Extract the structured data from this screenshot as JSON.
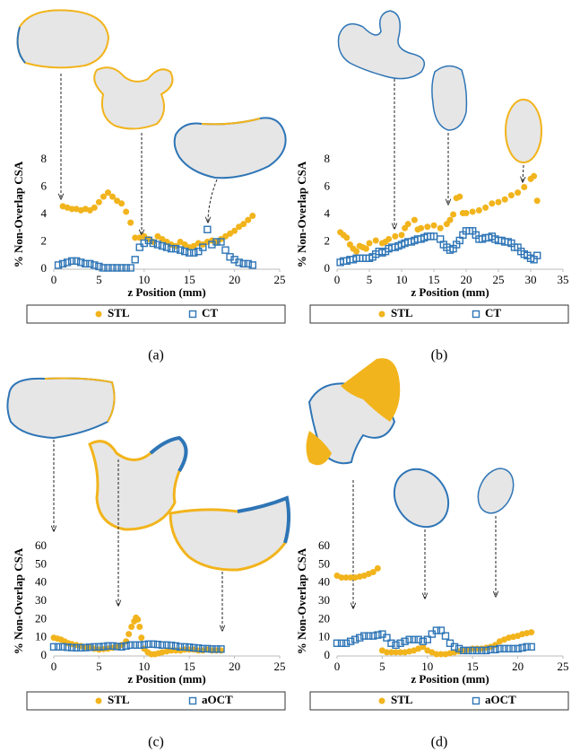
{
  "chart_data": [
    {
      "type": "scatter",
      "panel_label": "(a)",
      "xlabel": "z Position (mm)",
      "ylabel": "% Non-Overlap CSA",
      "xlim": [
        0,
        25
      ],
      "ylim": [
        0,
        8
      ],
      "xticks": [
        0,
        5,
        10,
        15,
        20,
        25
      ],
      "yticks": [
        0,
        2,
        4,
        6,
        8
      ],
      "series": [
        {
          "name": "STL",
          "color": "#f2b41c",
          "marker": "circle",
          "x": [
            1,
            1.5,
            2,
            2.5,
            3,
            3.5,
            4,
            4.5,
            5,
            5.5,
            6,
            6.5,
            7,
            7.5,
            8,
            8.5,
            9,
            9.5,
            10,
            10.5,
            11,
            11.5,
            12,
            12.5,
            13,
            13.5,
            14,
            14.5,
            15,
            15.5,
            16,
            16.5,
            17,
            17.5,
            18,
            18.5,
            19,
            19.5,
            20,
            20.5,
            21,
            21.5,
            22
          ],
          "values": [
            4.6,
            4.5,
            4.4,
            4.4,
            4.3,
            4.4,
            4.3,
            4.5,
            4.9,
            5.3,
            5.6,
            5.3,
            5.0,
            4.8,
            4.2,
            3.4,
            2.3,
            2.3,
            2.4,
            2.2,
            2.0,
            2.4,
            2.2,
            2.0,
            1.8,
            1.7,
            2.0,
            1.8,
            1.6,
            1.7,
            1.9,
            1.8,
            2.0,
            2.1,
            2.0,
            2.2,
            2.4,
            2.6,
            2.8,
            3.1,
            3.3,
            3.6,
            3.9
          ]
        },
        {
          "name": "CT",
          "color": "#2e75b6",
          "marker": "square",
          "x": [
            0.5,
            1,
            1.5,
            2,
            2.5,
            3,
            3.5,
            4,
            4.5,
            5,
            5.5,
            6,
            6.5,
            7,
            7.5,
            8,
            8.5,
            9,
            9.5,
            10,
            10.5,
            11,
            11.5,
            12,
            12.5,
            13,
            13.5,
            14,
            14.5,
            15,
            15.5,
            16,
            16.5,
            17,
            17.5,
            18,
            18.5,
            19,
            19.5,
            20,
            20.5,
            21,
            21.5,
            22
          ],
          "values": [
            0.3,
            0.4,
            0.5,
            0.6,
            0.6,
            0.5,
            0.4,
            0.4,
            0.3,
            0.2,
            0.1,
            0.1,
            0.1,
            0.1,
            0.1,
            0.1,
            0.1,
            0.7,
            1.6,
            1.9,
            2.1,
            1.9,
            1.8,
            1.7,
            1.6,
            1.5,
            1.5,
            1.4,
            1.3,
            1.2,
            1.2,
            1.3,
            1.6,
            2.9,
            1.8,
            2.0,
            2.0,
            1.4,
            0.9,
            0.7,
            0.5,
            0.4,
            0.4,
            0.3
          ]
        }
      ]
    },
    {
      "type": "scatter",
      "panel_label": "(b)",
      "xlabel": "z Position (mm)",
      "ylabel": "% Non-Overlap CSA",
      "xlim": [
        0,
        35
      ],
      "ylim": [
        0,
        8
      ],
      "xticks": [
        0,
        5,
        10,
        15,
        20,
        25,
        30,
        35
      ],
      "yticks": [
        0,
        2,
        4,
        6,
        8
      ],
      "series": [
        {
          "name": "STL",
          "color": "#f2b41c",
          "marker": "circle",
          "x": [
            0.5,
            1,
            1.5,
            2,
            2.5,
            3,
            3.5,
            4,
            4.5,
            5,
            6,
            7,
            7.5,
            8,
            9,
            10,
            10.5,
            11,
            12,
            12.5,
            13,
            14,
            15,
            16,
            17,
            17.5,
            18,
            18.5,
            19,
            19.5,
            20,
            21,
            22,
            23,
            24,
            25,
            26,
            27,
            28,
            29,
            30,
            30.5,
            31
          ],
          "values": [
            2.7,
            2.5,
            2.3,
            1.8,
            1.5,
            1.3,
            1.7,
            1.6,
            1.5,
            1.9,
            2.1,
            1.9,
            2.0,
            2.2,
            2.4,
            2.5,
            3.0,
            3.3,
            3.6,
            2.9,
            3.0,
            3.1,
            3.2,
            3.0,
            3.3,
            3.6,
            4.0,
            5.2,
            5.3,
            4.1,
            4.1,
            4.2,
            4.3,
            4.5,
            4.8,
            4.9,
            5.1,
            5.4,
            5.6,
            6.0,
            6.6,
            6.8,
            5.0
          ]
        },
        {
          "name": "CT",
          "color": "#2e75b6",
          "marker": "square",
          "x": [
            0.5,
            1,
            1.5,
            2,
            2.5,
            3,
            3.5,
            4,
            4.5,
            5,
            5.5,
            6,
            6.5,
            7,
            7.5,
            8,
            8.5,
            9,
            9.5,
            10,
            10.5,
            11,
            11.5,
            12,
            12.5,
            13,
            13.5,
            14,
            14.5,
            15,
            16,
            16.5,
            17,
            17.5,
            18,
            18.5,
            19,
            19.5,
            20,
            20.5,
            21,
            21.5,
            22,
            22.5,
            23,
            23.5,
            24,
            24.5,
            25,
            25.5,
            26,
            26.5,
            27,
            27.5,
            28,
            28.5,
            29,
            29.5,
            30,
            30.5,
            31
          ],
          "values": [
            0.5,
            0.6,
            0.6,
            0.7,
            0.7,
            0.8,
            0.8,
            0.8,
            0.8,
            0.8,
            0.9,
            1.1,
            1.3,
            1.2,
            1.3,
            1.5,
            1.6,
            1.6,
            1.7,
            1.8,
            1.9,
            2.0,
            2.0,
            2.1,
            2.2,
            2.2,
            2.3,
            2.4,
            2.4,
            2.4,
            2.2,
            1.8,
            1.6,
            1.4,
            1.5,
            1.8,
            2.1,
            2.5,
            2.8,
            2.8,
            2.8,
            2.5,
            2.2,
            2.2,
            2.3,
            2.3,
            2.4,
            2.2,
            2.1,
            2.1,
            2.0,
            2.0,
            1.9,
            1.6,
            1.6,
            1.3,
            1.1,
            1.0,
            0.8,
            0.7,
            1.0
          ]
        }
      ]
    },
    {
      "type": "scatter",
      "panel_label": "(c)",
      "xlabel": "z Position (mm)",
      "ylabel": "% Non-Overlap CSA",
      "xlim": [
        0,
        25
      ],
      "ylim": [
        0,
        60
      ],
      "xticks": [
        0,
        5,
        10,
        15,
        20,
        25
      ],
      "yticks": [
        0,
        10,
        20,
        30,
        40,
        50,
        60
      ],
      "series": [
        {
          "name": "STL",
          "color": "#f2b41c",
          "marker": "circle",
          "x": [
            0,
            0.4,
            0.8,
            1.2,
            1.6,
            2,
            2.5,
            3,
            3.5,
            4,
            4.5,
            5,
            5.5,
            6,
            6.5,
            7,
            7.5,
            8,
            8.3,
            8.6,
            8.9,
            9.1,
            9.3,
            9.5,
            9.7,
            10,
            10.4,
            10.8,
            11.2,
            11.6,
            12,
            12.5,
            13,
            13.5,
            14,
            14.5,
            15,
            15.5,
            16,
            16.5,
            17,
            17.5,
            18,
            18.5
          ],
          "values": [
            10,
            9.5,
            9,
            8,
            7,
            6.5,
            6,
            5.5,
            5,
            4.5,
            4,
            3.5,
            3.8,
            4,
            4.5,
            5,
            6,
            8,
            12,
            16,
            19,
            21,
            20,
            16,
            10,
            4,
            2,
            1,
            1,
            1.5,
            2,
            2.5,
            3,
            3,
            3,
            3.5,
            3.5,
            3.5,
            3,
            3,
            3.5,
            3,
            3,
            3
          ]
        },
        {
          "name": "aOCT",
          "color": "#2e75b6",
          "marker": "square",
          "x": [
            0,
            0.5,
            1,
            1.5,
            2,
            2.5,
            3,
            3.5,
            4,
            4.5,
            5,
            5.5,
            6,
            6.5,
            7,
            7.5,
            8,
            8.5,
            9,
            9.5,
            10,
            10.5,
            11,
            11.5,
            12,
            12.5,
            13,
            13.5,
            14,
            14.5,
            15,
            15.5,
            16,
            16.5,
            17,
            17.5,
            18,
            18.5
          ],
          "values": [
            5,
            5,
            5,
            4.8,
            4.6,
            4.5,
            4.5,
            4.6,
            4.8,
            5,
            5,
            5.2,
            5.5,
            5.5,
            5.2,
            5,
            5.5,
            6,
            6,
            6,
            6.2,
            6.5,
            6.5,
            6.3,
            6,
            6,
            5.8,
            5.5,
            5,
            5,
            4.8,
            4.5,
            4.3,
            4,
            4,
            3.8,
            3.8,
            3.8
          ]
        }
      ]
    },
    {
      "type": "scatter",
      "panel_label": "(d)",
      "xlabel": "z Position (mm)",
      "ylabel": "% Non-Overlap CSA",
      "xlim": [
        0,
        25
      ],
      "ylim": [
        0,
        60
      ],
      "xticks": [
        0,
        5,
        10,
        15,
        20,
        25
      ],
      "yticks": [
        0,
        10,
        20,
        30,
        40,
        50,
        60
      ],
      "series": [
        {
          "name": "STL",
          "color": "#f2b41c",
          "marker": "circle",
          "x": [
            0,
            0.5,
            1,
            1.5,
            2,
            2.5,
            3,
            3.5,
            4,
            4.5,
            5,
            5.5,
            6,
            6.5,
            7,
            7.5,
            8,
            8.5,
            9,
            9.5,
            10,
            10.5,
            11,
            11.5,
            12,
            12.5,
            13,
            13.5,
            14,
            14.5,
            15,
            15.5,
            16,
            16.5,
            17,
            17.5,
            18,
            18.5,
            19,
            19.5,
            20,
            20.5,
            21,
            21.5
          ],
          "values": [
            44,
            43,
            43,
            43,
            43,
            43.5,
            44,
            45,
            46,
            48,
            3,
            2,
            2,
            2,
            2,
            2,
            2.5,
            3,
            4,
            5,
            3,
            2,
            1,
            1,
            1,
            1.5,
            2,
            2.5,
            3,
            3.5,
            4,
            4,
            4,
            4.5,
            5,
            6,
            8,
            9,
            10,
            10.5,
            11,
            12,
            12.5,
            13
          ]
        },
        {
          "name": "aOCT",
          "color": "#2e75b6",
          "marker": "square",
          "x": [
            0,
            0.5,
            1,
            1.5,
            2,
            2.5,
            3,
            3.5,
            4,
            4.5,
            5,
            5.5,
            6,
            6.5,
            7,
            7.5,
            8,
            8.5,
            9,
            9.5,
            10,
            10.5,
            11,
            11.5,
            12,
            12.5,
            13,
            13.5,
            14,
            14.5,
            15,
            15.5,
            16,
            16.5,
            17,
            17.5,
            18,
            18.5,
            19,
            19.5,
            20,
            20.5,
            21,
            21.5
          ],
          "values": [
            7,
            7,
            7,
            8,
            9,
            10,
            11,
            11,
            11,
            11.5,
            12,
            10,
            7,
            6,
            7,
            8,
            9,
            9,
            9,
            8,
            9,
            12,
            14,
            14,
            11,
            7,
            5,
            4,
            3,
            3,
            3,
            3,
            3,
            3,
            3.5,
            3.5,
            4,
            4,
            4,
            4,
            4,
            4.5,
            5,
            5
          ]
        }
      ]
    }
  ]
}
